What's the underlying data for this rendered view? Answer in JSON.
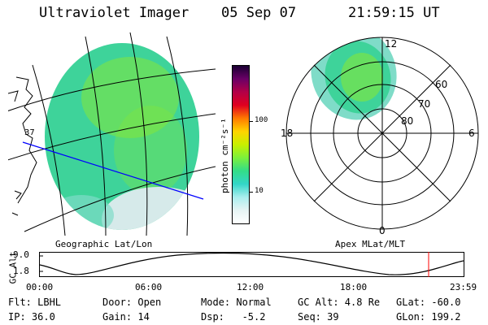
{
  "header": {
    "title": "Ultraviolet Imager",
    "date": "05 Sep 07",
    "time": "21:59:15 UT"
  },
  "colors": {
    "aurora_main": "#3ed39a",
    "aurora_bright": "#84e83a",
    "aurora_dim": "#d6eaea",
    "grid": "#000000",
    "track_line": "#0000ff",
    "time_marker": "#ff0000"
  },
  "colorbar": {
    "unit_label": "photon cm⁻²s⁻¹",
    "tick_labels": [
      "100",
      "10"
    ],
    "stops": [
      "#1a0033",
      "#6a0066",
      "#b30047",
      "#e0001f",
      "#ff7a00",
      "#ffd400",
      "#c8f000",
      "#7cf03c",
      "#33dd88",
      "#33d6c8",
      "#aaeeee",
      "#e6f4f4",
      "#ffffff"
    ]
  },
  "geo_panel": {
    "label": "Geographic Lat/Lon",
    "coast_label": "37"
  },
  "polar_panel": {
    "label": "Apex MLat/MLT",
    "mlt_labels": {
      "top": "12",
      "left": "18",
      "right": "6",
      "bottom": "0"
    },
    "mlat_labels": [
      "60",
      "70",
      "80"
    ]
  },
  "altitude_plot": {
    "axis_label": "GC Alt",
    "y_ticks": [
      "9.0",
      "1.8"
    ],
    "time_ticks": [
      "00:00",
      "06:00",
      "12:00",
      "18:00",
      "23:59"
    ],
    "altitude_range_re": [
      1.8,
      9.0
    ],
    "marker_time": "21:59"
  },
  "info": {
    "flt": "Flt: LBHL",
    "door": "Door: Open",
    "mode": "Mode: Normal",
    "gc_alt": "GC Alt: 4.8 Re",
    "glat": "GLat: -60.0",
    "ip": "IP: 36.0",
    "gain": "Gain: 14",
    "dsp": "Dsp:   -5.2",
    "seq": "Seq: 39",
    "glon": "GLon: 199.2"
  }
}
